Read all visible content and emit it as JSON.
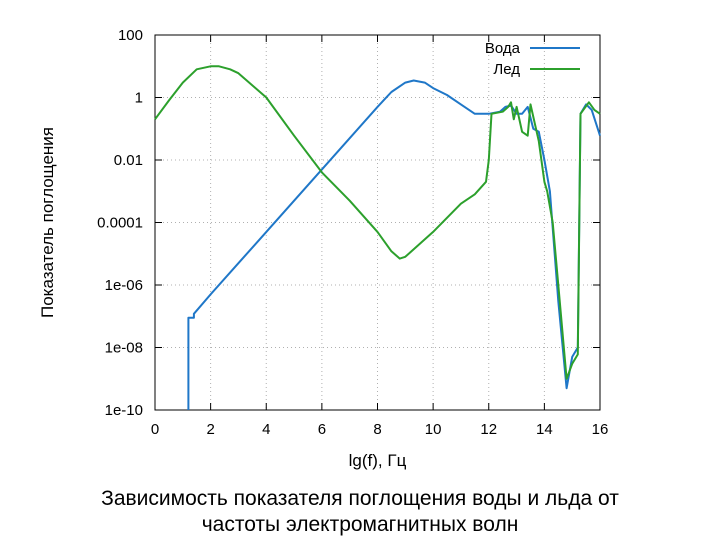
{
  "chart_data": {
    "type": "line",
    "title": "",
    "xlabel": "lg(f), Гц",
    "ylabel": "Показатель поглощения",
    "xlim": [
      0,
      16
    ],
    "ylim": [
      1e-10,
      100
    ],
    "yscale": "log",
    "grid": true,
    "legend": "top-right",
    "x_ticks": [
      "0",
      "2",
      "4",
      "6",
      "8",
      "10",
      "12",
      "14",
      "16"
    ],
    "y_ticks": [
      "1e-10",
      "1e-08",
      "1e-06",
      "0.0001",
      "0.01",
      "1",
      "100"
    ],
    "series": [
      {
        "name": "Вода",
        "color": "#1f77c8",
        "x": [
          1.2,
          1.2,
          1.3,
          1.4,
          1.4,
          2,
          3,
          4,
          5,
          6,
          7,
          8,
          8.5,
          9,
          9.3,
          9.7,
          10,
          10.5,
          11,
          11.5,
          12,
          12.4,
          12.6,
          12.8,
          13.0,
          13.2,
          13.4,
          13.6,
          13.8,
          14.0,
          14.2,
          14.5,
          14.8,
          15.0,
          15.2,
          15.3,
          15.5,
          15.7,
          16.0
        ],
        "y": [
          1e-10,
          9e-08,
          9e-08,
          9e-08,
          1.2e-07,
          5e-07,
          5e-06,
          5e-05,
          0.0005,
          0.005,
          0.05,
          0.5,
          1.5,
          3,
          3.5,
          3,
          2,
          1.2,
          0.6,
          0.3,
          0.3,
          0.35,
          0.5,
          0.55,
          0.3,
          0.3,
          0.5,
          0.1,
          0.08,
          0.01,
          0.001,
          3e-07,
          5e-10,
          5e-09,
          1e-08,
          0.3,
          0.6,
          0.4,
          0.06
        ]
      },
      {
        "name": "Лед",
        "color": "#2ca02c",
        "x": [
          0,
          0.5,
          1,
          1.5,
          2,
          2.3,
          2.7,
          3,
          4,
          5,
          6,
          7,
          8,
          8.5,
          8.8,
          9,
          10,
          11,
          11.5,
          11.9,
          12.0,
          12.1,
          12.5,
          12.7,
          12.8,
          12.9,
          13.0,
          13.2,
          13.4,
          13.5,
          13.8,
          14.0,
          14.1,
          14.3,
          14.5,
          14.8,
          15.0,
          15.2,
          15.3,
          15.6,
          15.8,
          16.0
        ],
        "y": [
          0.2,
          0.8,
          3,
          8,
          10,
          10,
          8,
          6,
          1,
          0.06,
          0.004,
          0.0005,
          5e-05,
          1.2e-05,
          7e-06,
          8e-06,
          5e-05,
          0.0004,
          0.0008,
          0.002,
          0.01,
          0.3,
          0.35,
          0.5,
          0.7,
          0.2,
          0.5,
          0.08,
          0.06,
          0.6,
          0.04,
          0.002,
          0.001,
          0.0001,
          1e-06,
          1e-09,
          3e-09,
          6e-09,
          0.3,
          0.7,
          0.4,
          0.3
        ]
      }
    ]
  },
  "caption": {
    "line1": "Зависимость показателя поглощения воды и льда от",
    "line2": "частоты электромагнитных волн"
  }
}
